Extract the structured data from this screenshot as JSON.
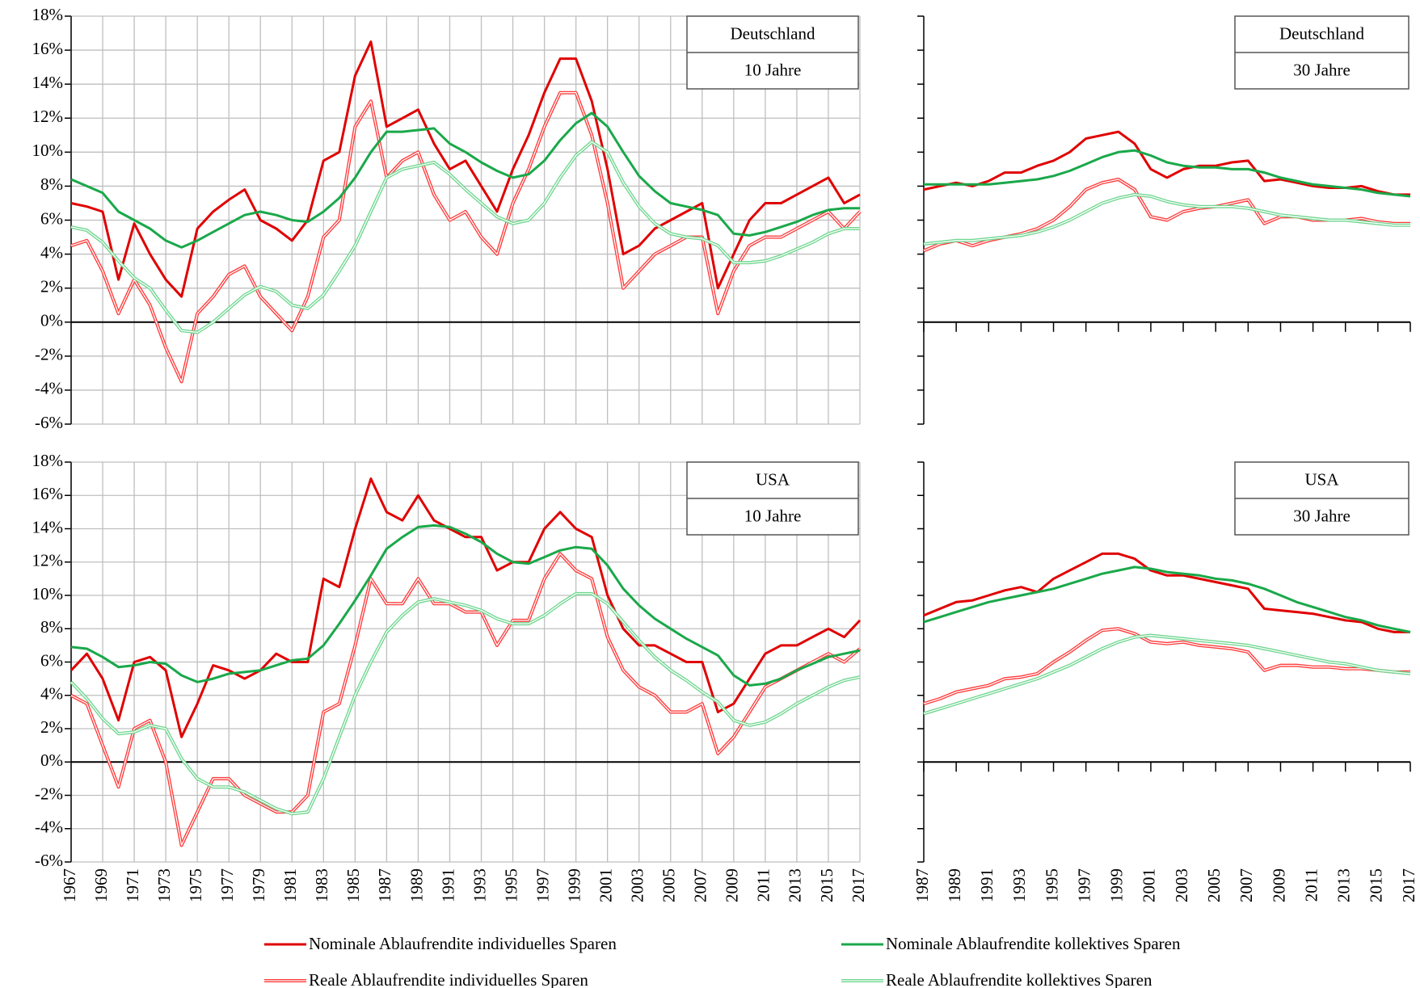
{
  "legend": [
    {
      "name": "Nominale Ablaufrendite individuelles Sparen",
      "color": "#e00000",
      "style": "solid"
    },
    {
      "name": "Reale Ablaufrendite individuelles Sparen",
      "color": "#ff3b3b",
      "style": "double"
    },
    {
      "name": "Nominale Ablaufrendite kollektives Sparen",
      "color": "#1aa84a",
      "style": "solid"
    },
    {
      "name": "Reale Ablaufrendite kollektives Sparen",
      "color": "#6fd68f",
      "style": "double"
    }
  ],
  "chart_data": [
    {
      "type": "line",
      "annotations": [
        "Deutschland",
        "10 Jahre"
      ],
      "x": [
        1967,
        1968,
        1969,
        1970,
        1971,
        1972,
        1973,
        1974,
        1975,
        1976,
        1977,
        1978,
        1979,
        1980,
        1981,
        1982,
        1983,
        1984,
        1985,
        1986,
        1987,
        1988,
        1989,
        1990,
        1991,
        1992,
        1993,
        1994,
        1995,
        1996,
        1997,
        1998,
        1999,
        2000,
        2001,
        2002,
        2003,
        2004,
        2005,
        2006,
        2007,
        2008,
        2009,
        2010,
        2011,
        2012,
        2013,
        2014,
        2015,
        2016,
        2017
      ],
      "series": [
        {
          "values": [
            7.0,
            6.8,
            6.5,
            2.5,
            5.8,
            4.0,
            2.5,
            1.5,
            5.5,
            6.5,
            7.2,
            7.8,
            6.0,
            5.5,
            4.8,
            6.0,
            9.5,
            10.0,
            14.5,
            16.5,
            11.5,
            12.0,
            12.5,
            10.5,
            9.0,
            9.5,
            8.0,
            6.5,
            9.0,
            11.0,
            13.5,
            15.5,
            15.5,
            13.0,
            9.0,
            4.0,
            4.5,
            5.5,
            6.0,
            6.5,
            7.0,
            2.0,
            4.0,
            6.0,
            7.0,
            7.0,
            7.5,
            8.0,
            8.5,
            7.0,
            7.5
          ]
        },
        {
          "values": [
            4.5,
            4.8,
            3.0,
            0.5,
            2.5,
            1.0,
            -1.5,
            -3.5,
            0.5,
            1.5,
            2.8,
            3.3,
            1.5,
            0.5,
            -0.5,
            1.5,
            5.0,
            6.0,
            11.5,
            13.0,
            8.5,
            9.5,
            10.0,
            7.5,
            6.0,
            6.5,
            5.0,
            4.0,
            7.0,
            9.0,
            11.5,
            13.5,
            13.5,
            11.0,
            7.0,
            2.0,
            3.0,
            4.0,
            4.5,
            5.0,
            5.0,
            0.5,
            3.0,
            4.5,
            5.0,
            5.0,
            5.5,
            6.0,
            6.5,
            5.5,
            6.5
          ]
        },
        {
          "values": [
            8.4,
            8.0,
            7.6,
            6.5,
            6.0,
            5.5,
            4.8,
            4.4,
            4.8,
            5.3,
            5.8,
            6.3,
            6.5,
            6.3,
            6.0,
            5.9,
            6.5,
            7.3,
            8.5,
            10.0,
            11.2,
            11.2,
            11.3,
            11.4,
            10.5,
            10.0,
            9.4,
            8.9,
            8.5,
            8.7,
            9.5,
            10.7,
            11.7,
            12.3,
            11.5,
            10.0,
            8.6,
            7.7,
            7.0,
            6.8,
            6.6,
            6.3,
            5.2,
            5.1,
            5.3,
            5.6,
            5.9,
            6.3,
            6.6,
            6.7,
            6.7
          ]
        },
        {
          "values": [
            5.6,
            5.4,
            4.7,
            3.6,
            2.6,
            2.0,
            0.7,
            -0.5,
            -0.6,
            0.0,
            0.8,
            1.6,
            2.1,
            1.8,
            1.0,
            0.8,
            1.6,
            3.0,
            4.5,
            6.5,
            8.5,
            9.0,
            9.2,
            9.4,
            8.7,
            7.8,
            7.0,
            6.2,
            5.8,
            6.0,
            7.0,
            8.5,
            9.8,
            10.6,
            10.0,
            8.2,
            6.8,
            5.8,
            5.2,
            5.0,
            4.9,
            4.5,
            3.5,
            3.5,
            3.6,
            3.9,
            4.3,
            4.7,
            5.2,
            5.5,
            5.5
          ]
        }
      ],
      "xlim": [
        1967,
        2017
      ],
      "xticks": [
        1967,
        1969,
        1971,
        1973,
        1975,
        1977,
        1979,
        1981,
        1983,
        1985,
        1987,
        1989,
        1991,
        1993,
        1995,
        1997,
        1999,
        2001,
        2003,
        2005,
        2007,
        2009,
        2011,
        2013,
        2015,
        2017
      ],
      "x_tick_labels": false,
      "ylim": [
        -6,
        18
      ],
      "yticks": [
        {
          "value": 18,
          "label": "18%"
        },
        {
          "value": 16,
          "label": "16%"
        },
        {
          "value": 14,
          "label": "14%"
        },
        {
          "value": 12,
          "label": "12%"
        },
        {
          "value": 10,
          "label": "10%"
        },
        {
          "value": 8,
          "label": "8%"
        },
        {
          "value": 6,
          "label": "6%"
        },
        {
          "value": 4,
          "label": "4%"
        },
        {
          "value": 2,
          "label": "2%"
        },
        {
          "value": 0,
          "label": "0%"
        },
        {
          "value": -2,
          "label": "-2%"
        },
        {
          "value": -4,
          "label": "-4%"
        },
        {
          "value": -6,
          "label": "-6%"
        }
      ],
      "y_tick_labels": true,
      "grid": true
    },
    {
      "type": "line",
      "annotations": [
        "Deutschland",
        "30 Jahre"
      ],
      "x": [
        1987,
        1988,
        1989,
        1990,
        1991,
        1992,
        1993,
        1994,
        1995,
        1996,
        1997,
        1998,
        1999,
        2000,
        2001,
        2002,
        2003,
        2004,
        2005,
        2006,
        2007,
        2008,
        2009,
        2010,
        2011,
        2012,
        2013,
        2014,
        2015,
        2016,
        2017
      ],
      "series": [
        {
          "values": [
            7.8,
            8.0,
            8.2,
            8.0,
            8.3,
            8.8,
            8.8,
            9.2,
            9.5,
            10.0,
            10.8,
            11.0,
            11.2,
            10.5,
            9.0,
            8.5,
            9.0,
            9.2,
            9.2,
            9.4,
            9.5,
            8.3,
            8.4,
            8.2,
            8.0,
            7.9,
            7.9,
            8.0,
            7.7,
            7.5,
            7.5
          ]
        },
        {
          "values": [
            4.2,
            4.6,
            4.8,
            4.5,
            4.8,
            5.0,
            5.2,
            5.5,
            6.0,
            6.8,
            7.8,
            8.2,
            8.4,
            7.8,
            6.2,
            6.0,
            6.5,
            6.7,
            6.8,
            7.0,
            7.2,
            5.8,
            6.2,
            6.2,
            6.0,
            6.0,
            6.0,
            6.1,
            5.9,
            5.8,
            5.8
          ]
        },
        {
          "values": [
            8.1,
            8.1,
            8.1,
            8.1,
            8.1,
            8.2,
            8.3,
            8.4,
            8.6,
            8.9,
            9.3,
            9.7,
            10.0,
            10.1,
            9.8,
            9.4,
            9.2,
            9.1,
            9.1,
            9.0,
            9.0,
            8.8,
            8.5,
            8.3,
            8.1,
            8.0,
            7.9,
            7.8,
            7.6,
            7.5,
            7.4
          ]
        },
        {
          "values": [
            4.6,
            4.7,
            4.8,
            4.8,
            4.9,
            5.0,
            5.1,
            5.3,
            5.6,
            6.0,
            6.5,
            7.0,
            7.3,
            7.5,
            7.4,
            7.1,
            6.9,
            6.8,
            6.8,
            6.8,
            6.7,
            6.5,
            6.3,
            6.2,
            6.1,
            6.0,
            6.0,
            5.9,
            5.8,
            5.7,
            5.7
          ]
        }
      ],
      "xlim": [
        1987,
        2017
      ],
      "xticks": [
        1987,
        1989,
        1991,
        1993,
        1995,
        1997,
        1999,
        2001,
        2003,
        2005,
        2007,
        2009,
        2011,
        2013,
        2015,
        2017
      ],
      "x_tick_labels": false,
      "ylim": [
        -6,
        18
      ],
      "yticks": [
        18,
        16,
        14,
        12,
        10,
        8,
        6,
        4,
        2,
        0,
        -2,
        -4,
        -6
      ],
      "y_tick_labels": false,
      "grid": false
    },
    {
      "type": "line",
      "annotations": [
        "USA",
        "10 Jahre"
      ],
      "x": [
        1967,
        1968,
        1969,
        1970,
        1971,
        1972,
        1973,
        1974,
        1975,
        1976,
        1977,
        1978,
        1979,
        1980,
        1981,
        1982,
        1983,
        1984,
        1985,
        1986,
        1987,
        1988,
        1989,
        1990,
        1991,
        1992,
        1993,
        1994,
        1995,
        1996,
        1997,
        1998,
        1999,
        2000,
        2001,
        2002,
        2003,
        2004,
        2005,
        2006,
        2007,
        2008,
        2009,
        2010,
        2011,
        2012,
        2013,
        2014,
        2015,
        2016,
        2017
      ],
      "series": [
        {
          "values": [
            5.5,
            6.5,
            5.0,
            2.5,
            6.0,
            6.3,
            5.5,
            1.5,
            3.5,
            5.8,
            5.5,
            5.0,
            5.5,
            6.5,
            6.0,
            6.0,
            11.0,
            10.5,
            14.0,
            17.0,
            15.0,
            14.5,
            16.0,
            14.5,
            14.0,
            13.5,
            13.5,
            11.5,
            12.0,
            12.0,
            14.0,
            15.0,
            14.0,
            13.5,
            10.0,
            8.0,
            7.0,
            7.0,
            6.5,
            6.0,
            6.0,
            3.0,
            3.5,
            5.0,
            6.5,
            7.0,
            7.0,
            7.5,
            8.0,
            7.5,
            8.5
          ]
        },
        {
          "values": [
            4.0,
            3.5,
            1.0,
            -1.5,
            2.0,
            2.5,
            0.0,
            -5.0,
            -3.0,
            -1.0,
            -1.0,
            -2.0,
            -2.5,
            -3.0,
            -3.0,
            -2.0,
            3.0,
            3.5,
            7.0,
            11.0,
            9.5,
            9.5,
            11.0,
            9.5,
            9.5,
            9.0,
            9.0,
            7.0,
            8.5,
            8.5,
            11.0,
            12.5,
            11.5,
            11.0,
            7.5,
            5.5,
            4.5,
            4.0,
            3.0,
            3.0,
            3.5,
            0.5,
            1.5,
            3.0,
            4.5,
            5.0,
            5.5,
            6.0,
            6.5,
            6.0,
            6.8
          ]
        },
        {
          "values": [
            6.9,
            6.8,
            6.3,
            5.7,
            5.8,
            6.0,
            5.9,
            5.2,
            4.8,
            5.0,
            5.3,
            5.4,
            5.5,
            5.8,
            6.1,
            6.2,
            7.0,
            8.3,
            9.7,
            11.2,
            12.8,
            13.5,
            14.1,
            14.2,
            14.1,
            13.7,
            13.2,
            12.5,
            12.0,
            11.9,
            12.3,
            12.7,
            12.9,
            12.8,
            11.8,
            10.4,
            9.4,
            8.6,
            8.0,
            7.4,
            6.9,
            6.4,
            5.2,
            4.6,
            4.7,
            5.0,
            5.5,
            5.9,
            6.3,
            6.5,
            6.7
          ]
        },
        {
          "values": [
            4.8,
            3.8,
            2.6,
            1.7,
            1.8,
            2.2,
            2.0,
            0.2,
            -1.0,
            -1.5,
            -1.5,
            -1.8,
            -2.3,
            -2.8,
            -3.1,
            -3.0,
            -1.0,
            1.5,
            4.0,
            6.0,
            7.8,
            8.8,
            9.6,
            9.8,
            9.6,
            9.4,
            9.1,
            8.6,
            8.3,
            8.3,
            8.8,
            9.5,
            10.1,
            10.1,
            9.5,
            8.4,
            7.3,
            6.3,
            5.5,
            4.9,
            4.2,
            3.6,
            2.5,
            2.2,
            2.4,
            2.9,
            3.5,
            4.0,
            4.5,
            4.9,
            5.1
          ]
        }
      ],
      "xlim": [
        1967,
        2017
      ],
      "xticks": [
        1967,
        1969,
        1971,
        1973,
        1975,
        1977,
        1979,
        1981,
        1983,
        1985,
        1987,
        1989,
        1991,
        1993,
        1995,
        1997,
        1999,
        2001,
        2003,
        2005,
        2007,
        2009,
        2011,
        2013,
        2015,
        2017
      ],
      "x_tick_labels": true,
      "ylim": [
        -6,
        18
      ],
      "yticks": [
        {
          "value": 18,
          "label": "18%"
        },
        {
          "value": 16,
          "label": "16%"
        },
        {
          "value": 14,
          "label": "14%"
        },
        {
          "value": 12,
          "label": "12%"
        },
        {
          "value": 10,
          "label": "10%"
        },
        {
          "value": 8,
          "label": "8%"
        },
        {
          "value": 6,
          "label": "6%"
        },
        {
          "value": 4,
          "label": "4%"
        },
        {
          "value": 2,
          "label": "2%"
        },
        {
          "value": 0,
          "label": "0%"
        },
        {
          "value": -2,
          "label": "-2%"
        },
        {
          "value": -4,
          "label": "-4%"
        },
        {
          "value": -6,
          "label": "-6%"
        }
      ],
      "y_tick_labels": true,
      "grid": true
    },
    {
      "type": "line",
      "annotations": [
        "USA",
        "30 Jahre"
      ],
      "x": [
        1987,
        1988,
        1989,
        1990,
        1991,
        1992,
        1993,
        1994,
        1995,
        1996,
        1997,
        1998,
        1999,
        2000,
        2001,
        2002,
        2003,
        2004,
        2005,
        2006,
        2007,
        2008,
        2009,
        2010,
        2011,
        2012,
        2013,
        2014,
        2015,
        2016,
        2017
      ],
      "series": [
        {
          "values": [
            8.8,
            9.2,
            9.6,
            9.7,
            10.0,
            10.3,
            10.5,
            10.2,
            11.0,
            11.5,
            12.0,
            12.5,
            12.5,
            12.2,
            11.5,
            11.2,
            11.2,
            11.0,
            10.8,
            10.6,
            10.4,
            9.2,
            9.1,
            9.0,
            8.9,
            8.7,
            8.5,
            8.4,
            8.0,
            7.8,
            7.8
          ]
        },
        {
          "values": [
            3.5,
            3.8,
            4.2,
            4.4,
            4.6,
            5.0,
            5.1,
            5.3,
            6.0,
            6.6,
            7.3,
            7.9,
            8.0,
            7.7,
            7.2,
            7.1,
            7.2,
            7.0,
            6.9,
            6.8,
            6.6,
            5.5,
            5.8,
            5.8,
            5.7,
            5.7,
            5.6,
            5.6,
            5.5,
            5.4,
            5.4
          ]
        },
        {
          "values": [
            8.4,
            8.7,
            9.0,
            9.3,
            9.6,
            9.8,
            10.0,
            10.2,
            10.4,
            10.7,
            11.0,
            11.3,
            11.5,
            11.7,
            11.6,
            11.4,
            11.3,
            11.2,
            11.0,
            10.9,
            10.7,
            10.4,
            10.0,
            9.6,
            9.3,
            9.0,
            8.7,
            8.5,
            8.2,
            8.0,
            7.8
          ]
        },
        {
          "values": [
            2.9,
            3.2,
            3.5,
            3.8,
            4.1,
            4.4,
            4.7,
            5.0,
            5.4,
            5.8,
            6.3,
            6.8,
            7.2,
            7.5,
            7.6,
            7.5,
            7.4,
            7.3,
            7.2,
            7.1,
            7.0,
            6.8,
            6.6,
            6.4,
            6.2,
            6.0,
            5.9,
            5.7,
            5.5,
            5.4,
            5.3
          ]
        }
      ],
      "xlim": [
        1987,
        2017
      ],
      "xticks": [
        1987,
        1989,
        1991,
        1993,
        1995,
        1997,
        1999,
        2001,
        2003,
        2005,
        2007,
        2009,
        2011,
        2013,
        2015,
        2017
      ],
      "x_tick_labels": true,
      "ylim": [
        -6,
        18
      ],
      "yticks": [
        18,
        16,
        14,
        12,
        10,
        8,
        6,
        4,
        2,
        0,
        -2,
        -4,
        -6
      ],
      "y_tick_labels": false,
      "grid": false
    }
  ]
}
